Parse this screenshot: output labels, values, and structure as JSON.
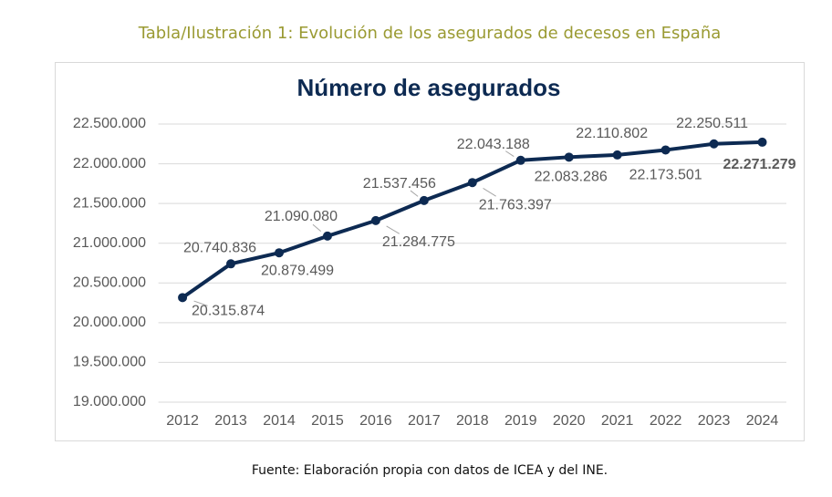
{
  "caption": "Tabla/Ilustración 1: Evolución de los asegurados de decesos en España",
  "source": "Fuente: Elaboración propia con datos de ICEA y del INE.",
  "chart_data": {
    "type": "line",
    "title": "Número de asegurados",
    "categories": [
      "2012",
      "2013",
      "2014",
      "2015",
      "2016",
      "2017",
      "2018",
      "2019",
      "2020",
      "2021",
      "2022",
      "2023",
      "2024"
    ],
    "values": [
      20315874,
      20740836,
      20879499,
      21090080,
      21284775,
      21537456,
      21763397,
      22043188,
      22083286,
      22110802,
      22173501,
      22250511,
      22271279
    ],
    "value_labels": [
      "20.315.874",
      "20.740.836",
      "20.879.499",
      "21.090.080",
      "21.284.775",
      "21.537.456",
      "21.763.397",
      "22.043.188",
      "22.083.286",
      "22.110.802",
      "22.173.501",
      "22.250.511",
      "22.271.279"
    ],
    "color": "#0d2a52",
    "ylim": [
      19000000,
      22500000
    ],
    "yticks": [
      {
        "value": 19000000,
        "label": "19.000.000"
      },
      {
        "value": 19500000,
        "label": "19.500.000"
      },
      {
        "value": 20000000,
        "label": "20.000.000"
      },
      {
        "value": 20500000,
        "label": "20.500.000"
      },
      {
        "value": 21000000,
        "label": "21.000.000"
      },
      {
        "value": 21500000,
        "label": "21.500.000"
      },
      {
        "value": 22000000,
        "label": "22.000.000"
      },
      {
        "value": 22500000,
        "label": "22.500.000"
      }
    ],
    "grid": true
  }
}
